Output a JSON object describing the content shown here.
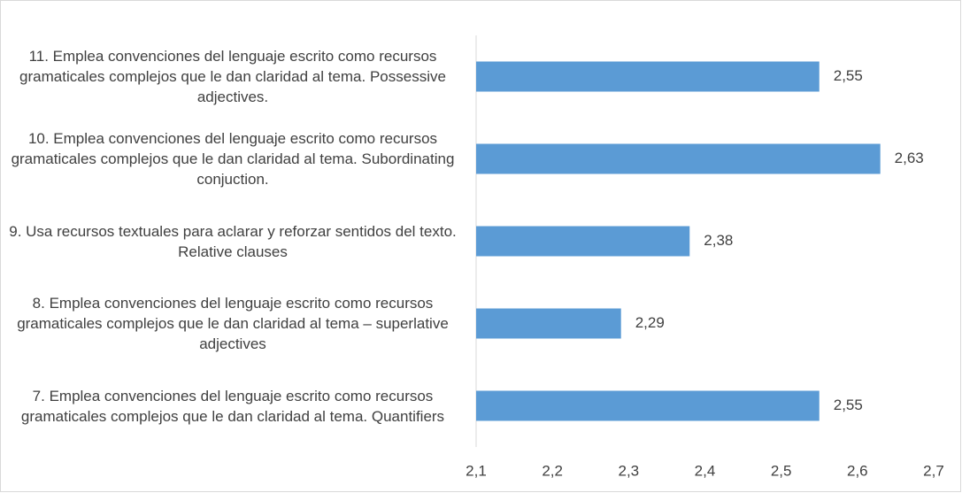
{
  "chart_data": {
    "type": "bar",
    "orientation": "horizontal",
    "categories": [
      "11. Emplea convenciones del lenguaje escrito como recursos gramaticales complejos que le dan claridad al tema. Possessive adjectives.",
      "10. Emplea convenciones del lenguaje escrito como recursos gramaticales complejos que le dan claridad al tema. Subordinating conjuction.",
      "9. Usa recursos textuales para aclarar y reforzar sentidos del texto. Relative clauses",
      "8. Emplea convenciones del lenguaje escrito como recursos  gramaticales complejos que le dan claridad al tema – superlative adjectives",
      "7. Emplea convenciones del lenguaje escrito como recursos gramaticales complejos que le dan claridad al tema. Quantifiers"
    ],
    "values": [
      2.55,
      2.63,
      2.38,
      2.29,
      2.55
    ],
    "value_labels": [
      "2,55",
      "2,63",
      "2,38",
      "2,29",
      "2,55"
    ],
    "color": "#5b9bd5",
    "xlim": [
      2.1,
      2.7
    ],
    "xticks": [
      {
        "value": 2.1,
        "label": "2,1"
      },
      {
        "value": 2.2,
        "label": "2,2"
      },
      {
        "value": 2.3,
        "label": "2,3"
      },
      {
        "value": 2.4,
        "label": "2,4"
      },
      {
        "value": 2.5,
        "label": "2,5"
      },
      {
        "value": 2.6,
        "label": "2,6"
      },
      {
        "value": 2.7,
        "label": "2,7"
      }
    ],
    "grid": false
  }
}
